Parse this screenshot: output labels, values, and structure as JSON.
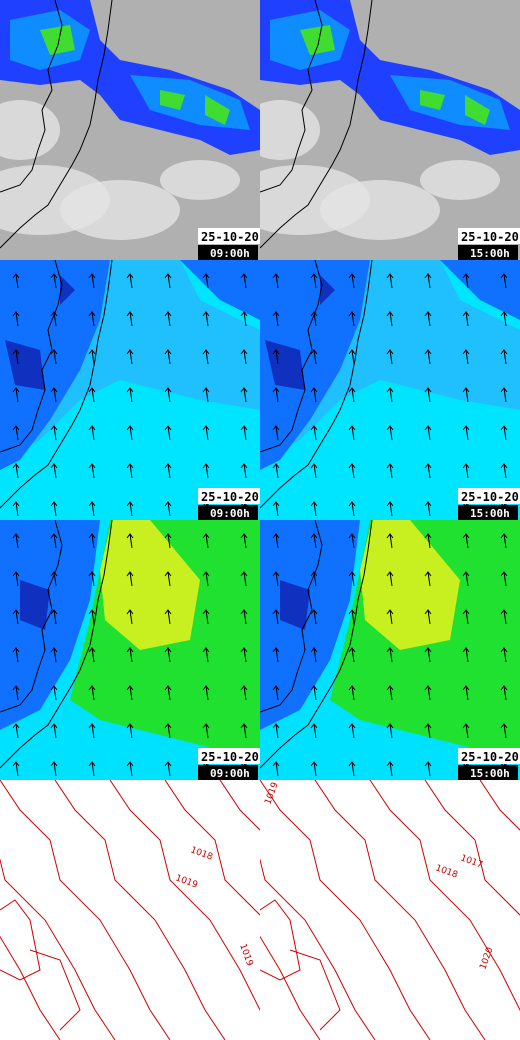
{
  "rows": [
    {
      "left": {
        "date": "25-10-20",
        "time": "09:00h"
      },
      "right": {
        "date": "25-10-20",
        "time": "15:00h"
      }
    },
    {
      "left": {
        "date": "25-10-20",
        "time": "09:00h"
      },
      "right": {
        "date": "25-10-20",
        "time": "15:00h"
      }
    },
    {
      "left": {
        "date": "25-10-20",
        "time": "09:00h"
      },
      "right": {
        "date": "25-10-20",
        "time": "15:00h"
      }
    }
  ],
  "isobars": {
    "left": [
      "1018",
      "1019",
      "1019"
    ],
    "right": [
      "1019",
      "1017",
      "1018",
      "1020"
    ]
  }
}
